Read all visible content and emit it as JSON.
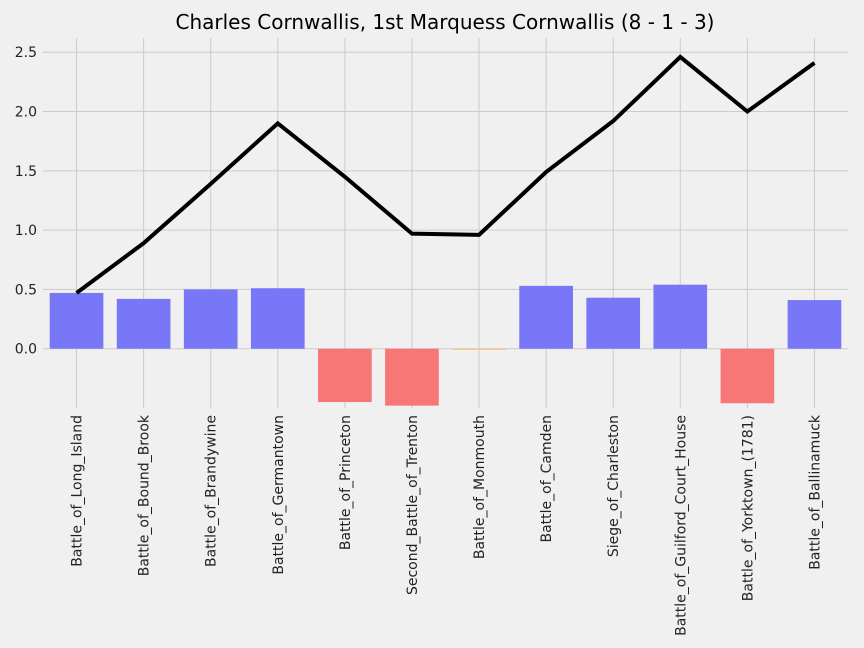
{
  "chart_data": {
    "type": "bar",
    "title": "Charles Cornwallis, 1st Marquess Cornwallis (8 - 1 - 3)",
    "xlabel": "",
    "ylabel": "",
    "ylim": [
      -0.5,
      2.62
    ],
    "yticks": [
      "0.0",
      "0.5",
      "1.0",
      "1.5",
      "2.0",
      "2.5"
    ],
    "grid": true,
    "categories": [
      "Battle_of_Long_Island",
      "Battle_of_Bound_Brook",
      "Battle_of_Brandywine",
      "Battle_of_Germantown",
      "Battle_of_Princeton",
      "Second_Battle_of_Trenton",
      "Battle_of_Monmouth",
      "Battle_of_Camden",
      "Siege_of_Charleston",
      "Battle_of_Guilford_Court_House",
      "Battle_of_Yorktown_(1781)",
      "Battle_of_Ballinamuck"
    ],
    "series": [
      {
        "type": "bar",
        "values": [
          0.47,
          0.42,
          0.5,
          0.51,
          -0.45,
          -0.48,
          -0.01,
          0.53,
          0.43,
          0.54,
          -0.46,
          0.41
        ],
        "colors": [
          "#7777f7",
          "#7777f7",
          "#7777f7",
          "#7777f7",
          "#f77777",
          "#f77777",
          "#f7c477",
          "#7777f7",
          "#7777f7",
          "#7777f7",
          "#f77777",
          "#7777f7"
        ]
      },
      {
        "type": "line",
        "values": [
          0.47,
          0.89,
          1.39,
          1.9,
          1.45,
          0.97,
          0.96,
          1.49,
          1.92,
          2.46,
          2.0,
          2.41
        ],
        "color": "#000000"
      }
    ]
  }
}
